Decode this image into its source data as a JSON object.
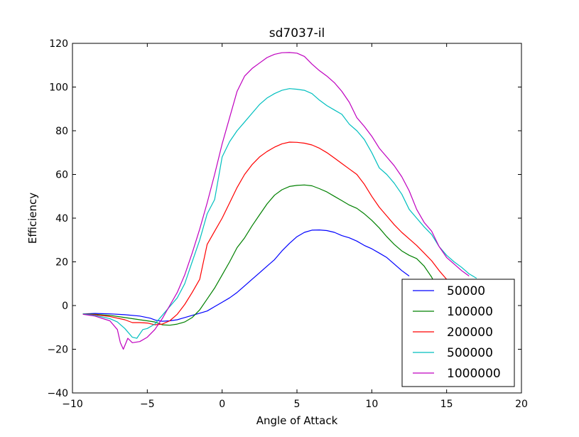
{
  "chart_data": {
    "type": "line",
    "title": "sd7037-il",
    "xlabel": "Angle of Attack",
    "ylabel": "Efficiency",
    "xlim": [
      -10,
      20
    ],
    "ylim": [
      -40,
      120
    ],
    "xticks": [
      -10,
      -5,
      0,
      5,
      10,
      15,
      20
    ],
    "yticks": [
      -40,
      -20,
      0,
      20,
      40,
      60,
      80,
      100,
      120
    ],
    "xtick_labels": [
      "−10",
      "−5",
      "0",
      "5",
      "10",
      "15",
      "20"
    ],
    "ytick_labels": [
      "−40",
      "−20",
      "0",
      "20",
      "40",
      "60",
      "80",
      "100",
      "120"
    ],
    "grid": false,
    "legend_position": "lower-right",
    "series": [
      {
        "name": "50000",
        "color": "#0000ff",
        "points": [
          [
            -9.3,
            -3.8
          ],
          [
            -8.5,
            -3.6
          ],
          [
            -7.5,
            -3.8
          ],
          [
            -6.5,
            -4.2
          ],
          [
            -5.5,
            -4.8
          ],
          [
            -4.8,
            -5.8
          ],
          [
            -4.4,
            -6.8
          ],
          [
            -4.0,
            -7.2
          ],
          [
            -3.5,
            -7.0
          ],
          [
            -3.0,
            -6.5
          ],
          [
            -2.5,
            -5.5
          ],
          [
            -2.0,
            -4.5
          ],
          [
            -1.5,
            -3.5
          ],
          [
            -1.0,
            -2.5
          ],
          [
            -0.5,
            -0.5
          ],
          [
            0.0,
            1.5
          ],
          [
            0.5,
            3.5
          ],
          [
            1.0,
            6.0
          ],
          [
            1.5,
            9.0
          ],
          [
            2.0,
            12.0
          ],
          [
            2.5,
            15.0
          ],
          [
            3.0,
            18.0
          ],
          [
            3.5,
            21.0
          ],
          [
            4.0,
            25.0
          ],
          [
            4.5,
            28.5
          ],
          [
            5.0,
            31.5
          ],
          [
            5.5,
            33.5
          ],
          [
            6.0,
            34.5
          ],
          [
            6.5,
            34.6
          ],
          [
            7.0,
            34.3
          ],
          [
            7.5,
            33.5
          ],
          [
            8.0,
            32.0
          ],
          [
            8.5,
            31.0
          ],
          [
            9.0,
            29.5
          ],
          [
            9.5,
            27.5
          ],
          [
            10.0,
            26.0
          ],
          [
            10.5,
            24.0
          ],
          [
            11.0,
            22.0
          ],
          [
            11.5,
            19.0
          ],
          [
            12.0,
            16.0
          ],
          [
            12.5,
            13.5
          ]
        ]
      },
      {
        "name": "100000",
        "color": "#008000",
        "points": [
          [
            -9.3,
            -3.8
          ],
          [
            -8.5,
            -4.0
          ],
          [
            -7.5,
            -4.5
          ],
          [
            -6.5,
            -5.5
          ],
          [
            -5.5,
            -6.5
          ],
          [
            -5.0,
            -7.0
          ],
          [
            -4.5,
            -7.5
          ],
          [
            -4.0,
            -8.8
          ],
          [
            -3.5,
            -9.0
          ],
          [
            -3.0,
            -8.5
          ],
          [
            -2.5,
            -7.5
          ],
          [
            -2.0,
            -5.5
          ],
          [
            -1.5,
            -2.0
          ],
          [
            -1.0,
            3.0
          ],
          [
            -0.5,
            8.0
          ],
          [
            0.0,
            14.0
          ],
          [
            0.5,
            20.0
          ],
          [
            1.0,
            26.5
          ],
          [
            1.5,
            31.0
          ],
          [
            2.0,
            36.5
          ],
          [
            2.5,
            41.5
          ],
          [
            3.0,
            46.5
          ],
          [
            3.5,
            50.5
          ],
          [
            4.0,
            53.0
          ],
          [
            4.5,
            54.5
          ],
          [
            5.0,
            55.0
          ],
          [
            5.5,
            55.2
          ],
          [
            6.0,
            54.8
          ],
          [
            6.5,
            53.5
          ],
          [
            7.0,
            52.0
          ],
          [
            7.5,
            50.0
          ],
          [
            8.0,
            48.0
          ],
          [
            8.5,
            46.0
          ],
          [
            9.0,
            44.5
          ],
          [
            9.5,
            42.0
          ],
          [
            10.0,
            39.0
          ],
          [
            10.5,
            35.5
          ],
          [
            11.0,
            31.5
          ],
          [
            11.5,
            28.0
          ],
          [
            12.0,
            25.0
          ],
          [
            12.5,
            23.0
          ],
          [
            13.0,
            21.5
          ],
          [
            13.5,
            18.0
          ],
          [
            14.0,
            13.0
          ],
          [
            14.5,
            6.0
          ]
        ]
      },
      {
        "name": "200000",
        "color": "#ff0000",
        "points": [
          [
            -9.3,
            -3.8
          ],
          [
            -8.5,
            -4.2
          ],
          [
            -7.5,
            -5.0
          ],
          [
            -6.5,
            -6.5
          ],
          [
            -6.0,
            -7.8
          ],
          [
            -5.5,
            -7.8
          ],
          [
            -5.0,
            -8.0
          ],
          [
            -4.5,
            -8.8
          ],
          [
            -4.0,
            -8.5
          ],
          [
            -3.5,
            -7.0
          ],
          [
            -3.0,
            -4.0
          ],
          [
            -2.5,
            0.5
          ],
          [
            -2.0,
            6.0
          ],
          [
            -1.5,
            12.0
          ],
          [
            -1.0,
            28.0
          ],
          [
            -0.5,
            34.0
          ],
          [
            0.0,
            40.0
          ],
          [
            0.5,
            47.0
          ],
          [
            1.0,
            54.0
          ],
          [
            1.5,
            60.0
          ],
          [
            2.0,
            64.5
          ],
          [
            2.5,
            68.0
          ],
          [
            3.0,
            70.5
          ],
          [
            3.5,
            72.5
          ],
          [
            4.0,
            74.0
          ],
          [
            4.5,
            74.8
          ],
          [
            5.0,
            74.7
          ],
          [
            5.5,
            74.3
          ],
          [
            6.0,
            73.5
          ],
          [
            6.5,
            72.0
          ],
          [
            7.0,
            70.0
          ],
          [
            7.5,
            67.5
          ],
          [
            8.0,
            65.0
          ],
          [
            8.5,
            62.5
          ],
          [
            9.0,
            60.0
          ],
          [
            9.5,
            55.5
          ],
          [
            10.0,
            50.0
          ],
          [
            10.5,
            45.0
          ],
          [
            11.0,
            41.0
          ],
          [
            11.5,
            37.0
          ],
          [
            12.0,
            33.5
          ],
          [
            12.5,
            30.5
          ],
          [
            13.0,
            27.5
          ],
          [
            13.5,
            24.0
          ],
          [
            14.0,
            20.5
          ],
          [
            14.5,
            16.0
          ],
          [
            15.0,
            12.0
          ],
          [
            15.5,
            8.5
          ],
          [
            16.0,
            5.0
          ],
          [
            16.5,
            2.5
          ]
        ]
      },
      {
        "name": "500000",
        "color": "#00bfbf",
        "points": [
          [
            -9.3,
            -3.8
          ],
          [
            -8.5,
            -4.5
          ],
          [
            -7.5,
            -6.0
          ],
          [
            -7.0,
            -7.5
          ],
          [
            -6.5,
            -10.5
          ],
          [
            -6.0,
            -14.5
          ],
          [
            -5.7,
            -15.0
          ],
          [
            -5.3,
            -11.0
          ],
          [
            -5.0,
            -10.5
          ],
          [
            -4.5,
            -8.5
          ],
          [
            -4.0,
            -4.5
          ],
          [
            -3.5,
            -0.5
          ],
          [
            -3.0,
            3.5
          ],
          [
            -2.5,
            10.0
          ],
          [
            -2.0,
            20.0
          ],
          [
            -1.5,
            30.0
          ],
          [
            -1.0,
            42.0
          ],
          [
            -0.5,
            48.5
          ],
          [
            0.0,
            68.0
          ],
          [
            0.5,
            75.0
          ],
          [
            1.0,
            80.0
          ],
          [
            1.5,
            84.0
          ],
          [
            2.0,
            88.0
          ],
          [
            2.5,
            92.0
          ],
          [
            3.0,
            95.0
          ],
          [
            3.5,
            97.0
          ],
          [
            4.0,
            98.5
          ],
          [
            4.5,
            99.3
          ],
          [
            5.0,
            99.0
          ],
          [
            5.5,
            98.5
          ],
          [
            6.0,
            97.0
          ],
          [
            6.5,
            94.0
          ],
          [
            7.0,
            91.5
          ],
          [
            7.5,
            89.5
          ],
          [
            8.0,
            87.5
          ],
          [
            8.5,
            83.0
          ],
          [
            9.0,
            80.0
          ],
          [
            9.5,
            76.0
          ],
          [
            10.0,
            70.0
          ],
          [
            10.5,
            63.0
          ],
          [
            11.0,
            60.0
          ],
          [
            11.5,
            56.0
          ],
          [
            12.0,
            51.0
          ],
          [
            12.5,
            44.0
          ],
          [
            13.0,
            40.0
          ],
          [
            13.5,
            36.0
          ],
          [
            14.0,
            32.5
          ],
          [
            14.5,
            27.0
          ],
          [
            15.0,
            23.0
          ],
          [
            15.5,
            20.0
          ],
          [
            16.0,
            17.5
          ],
          [
            16.5,
            14.5
          ],
          [
            17.0,
            12.5
          ]
        ]
      },
      {
        "name": "1000000",
        "color": "#bf00bf",
        "points": [
          [
            -9.3,
            -4.0
          ],
          [
            -8.5,
            -4.8
          ],
          [
            -7.5,
            -7.0
          ],
          [
            -7.0,
            -11.0
          ],
          [
            -6.8,
            -17.0
          ],
          [
            -6.6,
            -20.0
          ],
          [
            -6.3,
            -15.0
          ],
          [
            -6.0,
            -17.0
          ],
          [
            -5.5,
            -16.5
          ],
          [
            -5.0,
            -14.5
          ],
          [
            -4.5,
            -11.0
          ],
          [
            -4.0,
            -6.0
          ],
          [
            -3.5,
            0.0
          ],
          [
            -3.0,
            6.0
          ],
          [
            -2.5,
            14.0
          ],
          [
            -2.0,
            24.0
          ],
          [
            -1.5,
            35.0
          ],
          [
            -1.0,
            47.0
          ],
          [
            -0.5,
            60.0
          ],
          [
            0.0,
            74.0
          ],
          [
            0.5,
            86.0
          ],
          [
            1.0,
            98.0
          ],
          [
            1.5,
            105.0
          ],
          [
            2.0,
            108.5
          ],
          [
            2.5,
            111.0
          ],
          [
            3.0,
            113.5
          ],
          [
            3.5,
            115.0
          ],
          [
            4.0,
            115.7
          ],
          [
            4.5,
            115.8
          ],
          [
            5.0,
            115.5
          ],
          [
            5.5,
            114.0
          ],
          [
            6.0,
            110.5
          ],
          [
            6.5,
            107.5
          ],
          [
            7.0,
            105.0
          ],
          [
            7.5,
            102.0
          ],
          [
            8.0,
            98.0
          ],
          [
            8.5,
            93.0
          ],
          [
            9.0,
            86.0
          ],
          [
            9.5,
            82.0
          ],
          [
            10.0,
            77.5
          ],
          [
            10.5,
            72.0
          ],
          [
            11.0,
            68.0
          ],
          [
            11.5,
            64.0
          ],
          [
            12.0,
            59.0
          ],
          [
            12.5,
            52.5
          ],
          [
            13.0,
            44.0
          ],
          [
            13.5,
            38.0
          ],
          [
            14.0,
            34.0
          ],
          [
            14.5,
            27.0
          ],
          [
            15.0,
            22.0
          ],
          [
            15.5,
            19.0
          ],
          [
            16.0,
            16.0
          ],
          [
            16.5,
            13.5
          ]
        ]
      }
    ]
  }
}
